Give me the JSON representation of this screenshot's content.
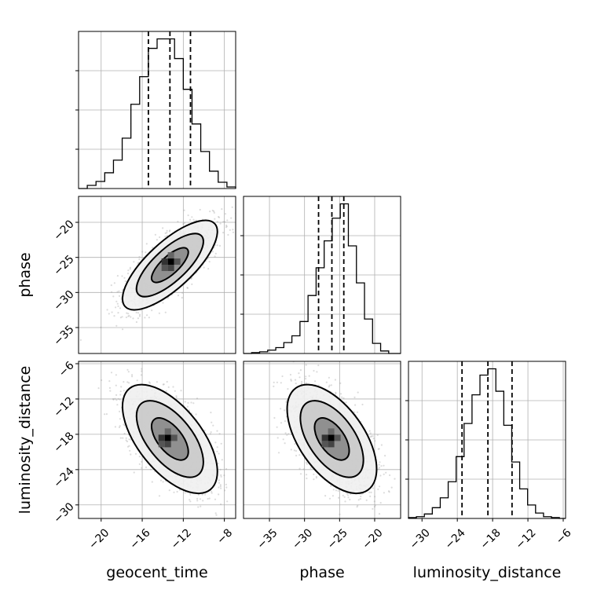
{
  "chart_data": {
    "type": "corner",
    "grid": true,
    "parameters": [
      {
        "name": "geocent_time",
        "label": "geocent_time",
        "range": [
          -22.2,
          -6.9
        ],
        "ticks": [
          -20,
          -16,
          -12,
          -8
        ],
        "tick_labels": [
          "−20",
          "−16",
          "−12",
          "−8"
        ],
        "quantiles": [
          -15.4,
          -13.3,
          -11.3
        ]
      },
      {
        "name": "phase",
        "label": "phase",
        "range": [
          -38.7,
          -16.3
        ],
        "ticks": [
          -35,
          -30,
          -25,
          -20
        ],
        "tick_labels": [
          "−35",
          "−30",
          "−25",
          "−20"
        ],
        "quantiles": [
          -28.0,
          -26.1,
          -24.4
        ]
      },
      {
        "name": "luminosity_distance",
        "label": "luminosity_distance",
        "range": [
          -32.3,
          -5.6
        ],
        "ticks": [
          -30,
          -24,
          -18,
          -12,
          -6
        ],
        "tick_labels": [
          "−30",
          "−24",
          "−18",
          "−12",
          "−6"
        ],
        "quantiles": [
          -23.2,
          -18.8,
          -14.7
        ]
      }
    ],
    "histograms": [
      {
        "parameter": "geocent_time",
        "bin_edges": [
          -22.2,
          -21.35,
          -20.5,
          -19.65,
          -18.8,
          -17.95,
          -17.1,
          -16.25,
          -15.4,
          -14.55,
          -13.7,
          -12.85,
          -12.0,
          -11.15,
          -10.3,
          -9.45,
          -8.6,
          -7.75,
          -6.9
        ],
        "counts": [
          0,
          4,
          9,
          20,
          36,
          64,
          107,
          142,
          178,
          190,
          190,
          165,
          126,
          82,
          47,
          22,
          8,
          2
        ]
      },
      {
        "parameter": "phase",
        "bin_edges": [
          -38.7,
          -37.55,
          -36.4,
          -35.25,
          -34.1,
          -32.95,
          -31.8,
          -30.65,
          -29.5,
          -28.35,
          -27.2,
          -26.05,
          -24.9,
          -23.75,
          -22.6,
          -21.45,
          -20.3,
          -19.15,
          -18.0,
          -16.3
        ],
        "counts": [
          0,
          1,
          2,
          4,
          7,
          13,
          21,
          38,
          69,
          102,
          134,
          161,
          178,
          128,
          84,
          41,
          12,
          3,
          0
        ]
      },
      {
        "parameter": "luminosity_distance",
        "bin_edges": [
          -32.3,
          -30.95,
          -29.6,
          -28.25,
          -26.9,
          -25.55,
          -24.2,
          -22.85,
          -21.5,
          -20.15,
          -18.8,
          -17.45,
          -16.1,
          -14.75,
          -13.4,
          -12.05,
          -10.7,
          -9.35,
          -8.0,
          -6.65,
          -5.6
        ],
        "counts": [
          1,
          2,
          5,
          12,
          23,
          41,
          69,
          106,
          138,
          160,
          167,
          142,
          104,
          63,
          33,
          15,
          6,
          2,
          1,
          0
        ]
      }
    ],
    "joint_distributions": [
      {
        "x": "geocent_time",
        "y": "phase",
        "mean": [
          -13.3,
          -26.1
        ],
        "std": [
          2.1,
          2.9
        ],
        "correlation": 0.75,
        "peak": [
          -13.2,
          -25.6
        ]
      },
      {
        "x": "geocent_time",
        "y": "luminosity_distance",
        "mean": [
          -13.3,
          -18.8
        ],
        "std": [
          2.1,
          4.2
        ],
        "correlation": -0.6,
        "peak": [
          -13.5,
          -18.6
        ]
      },
      {
        "x": "phase",
        "y": "luminosity_distance",
        "mean": [
          -26.1,
          -18.8
        ],
        "std": [
          2.9,
          4.2
        ],
        "correlation": -0.55,
        "peak": [
          -26.2,
          -18.6
        ]
      }
    ]
  }
}
